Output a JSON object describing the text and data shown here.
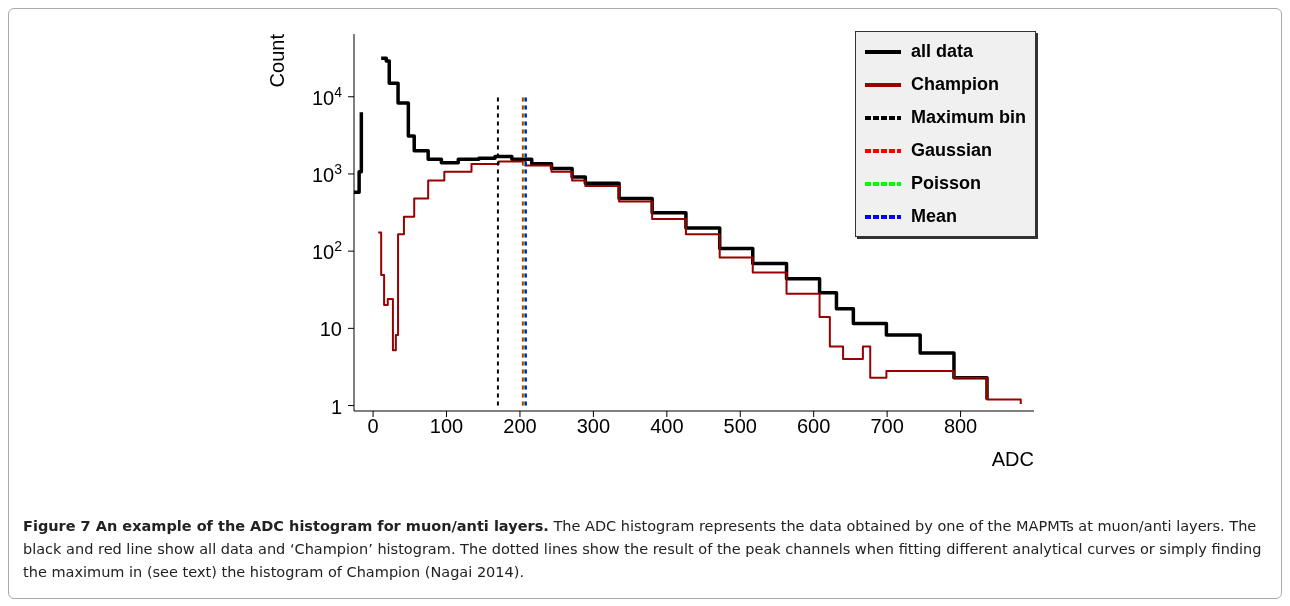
{
  "chart_data": {
    "type": "step",
    "title": "Figure 7 An example of the ADC histogram for muon/anti layers.",
    "annotations": [
      "The ADC histogram represents the data obtained by one of the MAPMTs at muon/anti layers. The black and red line show all data and ‘Champion’ histogram. The dotted lines show the result of the peak channels when fitting different analytical curves or simply finding the maximum in (see text) the histogram of Champion (Nagai 2014)."
    ],
    "xlabel": "ADC",
    "ylabel": "Count",
    "log": "y",
    "legend": "top right",
    "xlim": [
      -26,
      900
    ],
    "xticks": [
      0,
      100,
      200,
      300,
      400,
      500,
      600,
      700,
      800
    ],
    "ylim": [
      0.85,
      65000
    ],
    "yticks": [
      1,
      10,
      {
        "value": 100,
        "label": "10$^{2}$"
      },
      {
        "value": 1000,
        "label": "10$^{3}$"
      },
      {
        "value": 10000,
        "label": "10$^{4}$"
      }
    ],
    "series": [
      {
        "name": "all data",
        "color": "#000000",
        "x": [
          -26,
          -19,
          -16,
          -10,
          8,
          11,
          18,
          22,
          34,
          48,
          56,
          75,
          93,
          116,
          144,
          166,
          189,
          216,
          243,
          271,
          289,
          335,
          380,
          426,
          472,
          517,
          563,
          608,
          631,
          654,
          699,
          745,
          791,
          836
        ],
        "values": [
          580,
          1070,
          6300,
          null,
          null,
          31600,
          29000,
          15000,
          8300,
          3100,
          2000,
          1550,
          1400,
          1550,
          1600,
          1680,
          1550,
          1360,
          1180,
          910,
          760,
          480,
          315,
          200,
          108,
          69,
          44,
          29,
          18,
          11.6,
          8.2,
          4.8,
          2.3,
          1.2
        ]
      },
      {
        "name": "Champion",
        "color": "#990000",
        "x": [
          7,
          11,
          15,
          20,
          27,
          31,
          34,
          42,
          56,
          75,
          97,
          134,
          171,
          207,
          243,
          271,
          289,
          335,
          380,
          426,
          472,
          517,
          563,
          608,
          622,
          640,
          667,
          677,
          699,
          745,
          791,
          836,
          882
        ],
        "values": [
          175,
          49,
          20,
          24,
          5.2,
          8.2,
          165,
          280,
          480,
          820,
          1070,
          1350,
          1450,
          1290,
          1070,
          820,
          700,
          440,
          260,
          165,
          83,
          53,
          28,
          14,
          5.8,
          4,
          5.8,
          2.3,
          2.8,
          2.8,
          2.3,
          1.2,
          1.05
        ]
      },
      {
        "name": "Maximum bin",
        "line_style": "dashed",
        "color": "#000000",
        "x": [
          170,
          170
        ],
        "values": [
          1,
          10000
        ]
      },
      {
        "name": "Gaussian",
        "line_style": "dashed",
        "color": "#ff0000",
        "x": [
          204,
          204
        ],
        "values": [
          1,
          10000
        ]
      },
      {
        "name": "Poisson",
        "line_style": "dashed",
        "color": "#00ff00",
        "x": [
          206,
          206
        ],
        "values": [
          1,
          10000
        ]
      },
      {
        "name": "Mean",
        "line_style": "dashed",
        "color": "#0000ff",
        "x": [
          208,
          208
        ],
        "values": [
          1,
          10000
        ]
      }
    ]
  }
}
